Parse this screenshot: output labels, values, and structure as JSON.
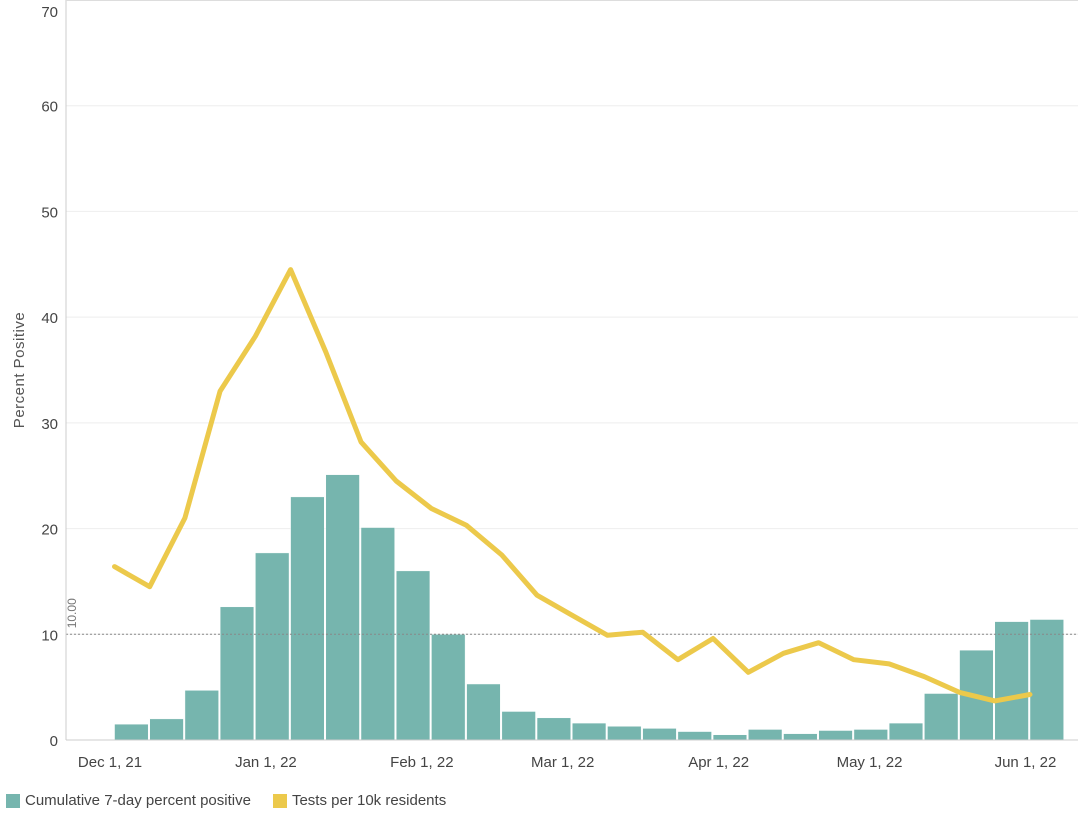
{
  "chart_data": {
    "type": "bar",
    "ylabel": "Percent Positive",
    "ylim": [
      0,
      70
    ],
    "yticks": [
      0,
      10,
      20,
      30,
      40,
      50,
      60,
      70
    ],
    "grid": true,
    "x_tick_labels": [
      "Dec 1, 21",
      "Jan 1, 22",
      "Feb 1, 22",
      "Mar 1, 22",
      "Apr 1, 22",
      "May 1, 22",
      "Jun 1, 22"
    ],
    "reference_line": {
      "value": 10,
      "label": "10.00"
    },
    "x": [
      "2021-12-05",
      "2021-12-12",
      "2021-12-19",
      "2021-12-26",
      "2022-01-02",
      "2022-01-09",
      "2022-01-16",
      "2022-01-23",
      "2022-01-30",
      "2022-02-06",
      "2022-02-13",
      "2022-02-20",
      "2022-02-27",
      "2022-03-06",
      "2022-03-13",
      "2022-03-20",
      "2022-03-27",
      "2022-04-03",
      "2022-04-10",
      "2022-04-17",
      "2022-04-24",
      "2022-05-01",
      "2022-05-08",
      "2022-05-15",
      "2022-05-22",
      "2022-05-29",
      "2022-06-05"
    ],
    "series": [
      {
        "name": "Cumulative 7-day percent positive",
        "type": "bar",
        "color": "#76b5ae",
        "values": [
          1.5,
          2.0,
          4.7,
          12.6,
          17.7,
          23.0,
          25.1,
          20.1,
          16.0,
          10.0,
          5.3,
          2.7,
          2.1,
          1.6,
          1.3,
          1.1,
          0.8,
          0.5,
          1.0,
          0.6,
          0.9,
          1.0,
          1.6,
          4.4,
          8.5,
          11.2,
          11.4
        ]
      },
      {
        "name": "Tests per 10k residents",
        "type": "line",
        "color": "#ecc94b",
        "values": [
          16.4,
          14.5,
          21.0,
          33.0,
          38.2,
          44.5,
          36.7,
          28.2,
          24.5,
          21.9,
          20.3,
          17.5,
          13.7,
          11.8,
          9.9,
          10.2,
          7.6,
          9.6,
          6.4,
          8.2,
          9.2,
          7.6,
          7.2,
          6.0,
          4.5,
          3.7,
          4.3
        ]
      }
    ]
  }
}
